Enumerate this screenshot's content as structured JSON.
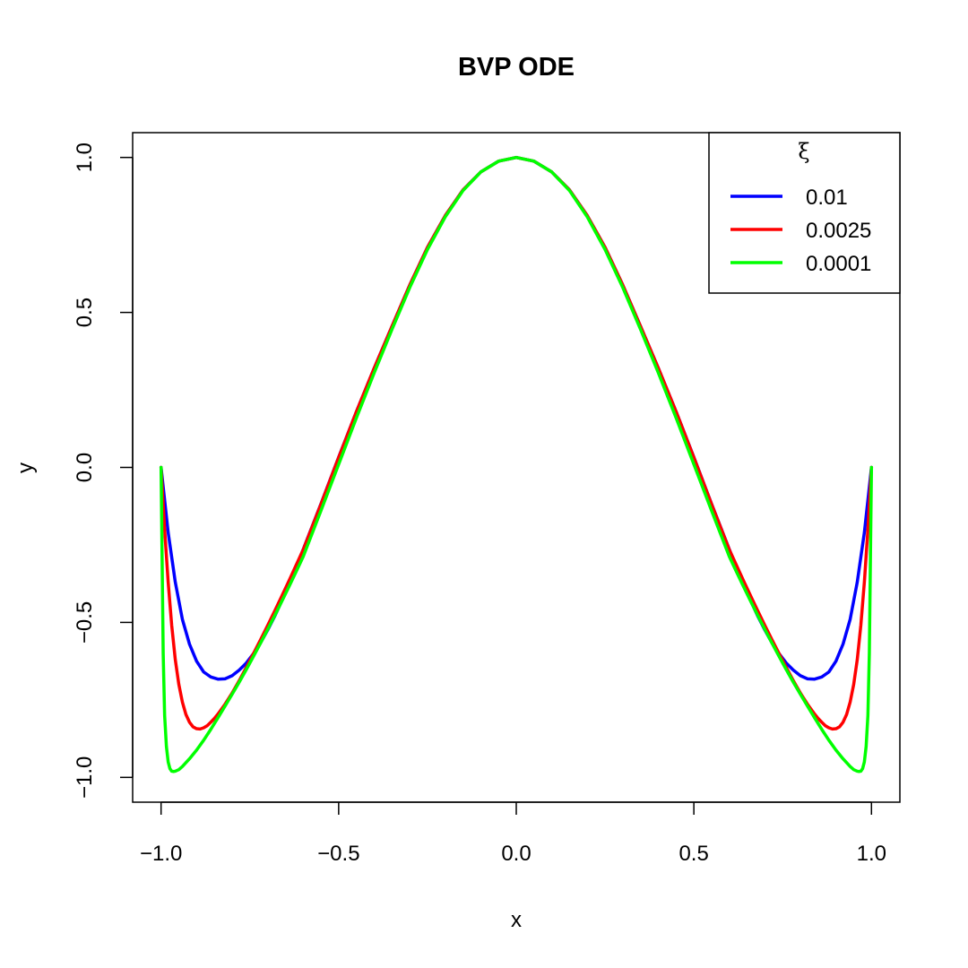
{
  "chart_data": {
    "type": "line",
    "title": "BVP ODE",
    "xlabel": "x",
    "ylabel": "y",
    "xlim": [
      -1.08,
      1.08
    ],
    "ylim": [
      -1.08,
      1.08
    ],
    "xticks": [
      -1.0,
      -0.5,
      0.0,
      0.5,
      1.0
    ],
    "xtick_labels": [
      "−1.0",
      "−0.5",
      "0.0",
      "0.5",
      "1.0"
    ],
    "yticks": [
      -1.0,
      -0.5,
      0.0,
      0.5,
      1.0
    ],
    "ytick_labels": [
      "−1.0",
      "−0.5",
      "0.0",
      "0.5",
      "1.0"
    ],
    "grid": false,
    "legend": {
      "title": "ξ",
      "placement": "top-right"
    },
    "series": [
      {
        "name": "0.01",
        "color": "#0000ff",
        "x": [
          -1.0,
          -0.98,
          -0.96,
          -0.94,
          -0.92,
          -0.9,
          -0.88,
          -0.86,
          -0.84,
          -0.82,
          -0.8,
          -0.78,
          -0.76,
          -0.74,
          -0.72,
          -0.7,
          -0.68,
          -0.66,
          -0.64,
          -0.62,
          -0.6,
          -0.55,
          -0.5,
          -0.45,
          -0.4,
          -0.35,
          -0.3,
          -0.25,
          -0.2,
          -0.15,
          -0.1,
          -0.05,
          0.0,
          0.05,
          0.1,
          0.15,
          0.2,
          0.25,
          0.3,
          0.35,
          0.4,
          0.45,
          0.5,
          0.55,
          0.6,
          0.62,
          0.64,
          0.66,
          0.68,
          0.7,
          0.72,
          0.74,
          0.76,
          0.78,
          0.8,
          0.82,
          0.84,
          0.86,
          0.88,
          0.9,
          0.92,
          0.94,
          0.96,
          0.98,
          1.0
        ],
        "y": [
          0.0,
          -0.21,
          -0.37,
          -0.49,
          -0.57,
          -0.625,
          -0.66,
          -0.676,
          -0.683,
          -0.682,
          -0.672,
          -0.654,
          -0.631,
          -0.601,
          -0.566,
          -0.525,
          -0.48,
          -0.43,
          -0.378,
          -0.322,
          -0.265,
          -0.118,
          0.033,
          0.18,
          0.32,
          0.455,
          0.588,
          0.71,
          0.812,
          0.895,
          0.953,
          0.988,
          1.0,
          0.988,
          0.953,
          0.895,
          0.812,
          0.71,
          0.588,
          0.455,
          0.32,
          0.18,
          0.033,
          -0.118,
          -0.265,
          -0.322,
          -0.378,
          -0.43,
          -0.48,
          -0.525,
          -0.566,
          -0.601,
          -0.631,
          -0.654,
          -0.672,
          -0.682,
          -0.683,
          -0.676,
          -0.66,
          -0.625,
          -0.57,
          -0.49,
          -0.37,
          -0.21,
          0.0
        ]
      },
      {
        "name": "0.0025",
        "color": "#ff0000",
        "x": [
          -1.0,
          -0.99,
          -0.98,
          -0.97,
          -0.96,
          -0.95,
          -0.94,
          -0.93,
          -0.92,
          -0.91,
          -0.9,
          -0.89,
          -0.88,
          -0.87,
          -0.86,
          -0.85,
          -0.84,
          -0.82,
          -0.8,
          -0.78,
          -0.76,
          -0.74,
          -0.72,
          -0.7,
          -0.68,
          -0.66,
          -0.64,
          -0.62,
          -0.6,
          -0.55,
          -0.5,
          -0.45,
          -0.4,
          -0.35,
          -0.3,
          -0.25,
          -0.2,
          -0.15,
          -0.1,
          -0.05,
          0.0,
          0.05,
          0.1,
          0.15,
          0.2,
          0.25,
          0.3,
          0.35,
          0.4,
          0.45,
          0.5,
          0.55,
          0.6,
          0.62,
          0.64,
          0.66,
          0.68,
          0.7,
          0.72,
          0.74,
          0.76,
          0.78,
          0.8,
          0.82,
          0.84,
          0.85,
          0.86,
          0.87,
          0.88,
          0.89,
          0.9,
          0.91,
          0.92,
          0.93,
          0.94,
          0.95,
          0.96,
          0.97,
          0.98,
          0.99,
          1.0
        ],
        "y": [
          0.0,
          -0.2,
          -0.37,
          -0.51,
          -0.62,
          -0.7,
          -0.757,
          -0.797,
          -0.822,
          -0.837,
          -0.843,
          -0.844,
          -0.84,
          -0.833,
          -0.822,
          -0.81,
          -0.796,
          -0.764,
          -0.728,
          -0.688,
          -0.645,
          -0.601,
          -0.556,
          -0.51,
          -0.463,
          -0.415,
          -0.366,
          -0.316,
          -0.266,
          -0.119,
          0.032,
          0.18,
          0.32,
          0.455,
          0.588,
          0.71,
          0.812,
          0.895,
          0.953,
          0.988,
          1.0,
          0.988,
          0.953,
          0.895,
          0.812,
          0.71,
          0.588,
          0.455,
          0.32,
          0.18,
          0.032,
          -0.119,
          -0.266,
          -0.316,
          -0.366,
          -0.415,
          -0.463,
          -0.51,
          -0.556,
          -0.601,
          -0.645,
          -0.688,
          -0.728,
          -0.764,
          -0.796,
          -0.81,
          -0.822,
          -0.833,
          -0.84,
          -0.844,
          -0.843,
          -0.837,
          -0.822,
          -0.797,
          -0.757,
          -0.7,
          -0.62,
          -0.51,
          -0.37,
          -0.2,
          0.0
        ]
      },
      {
        "name": "0.0001",
        "color": "#00ff00",
        "x": [
          -1.0,
          -0.997,
          -0.994,
          -0.99,
          -0.985,
          -0.98,
          -0.975,
          -0.97,
          -0.965,
          -0.96,
          -0.95,
          -0.94,
          -0.92,
          -0.9,
          -0.88,
          -0.86,
          -0.84,
          -0.82,
          -0.8,
          -0.78,
          -0.76,
          -0.74,
          -0.72,
          -0.7,
          -0.68,
          -0.66,
          -0.64,
          -0.62,
          -0.6,
          -0.55,
          -0.5,
          -0.45,
          -0.4,
          -0.35,
          -0.3,
          -0.25,
          -0.2,
          -0.15,
          -0.1,
          -0.05,
          0.0,
          0.05,
          0.1,
          0.15,
          0.2,
          0.25,
          0.3,
          0.35,
          0.4,
          0.45,
          0.5,
          0.55,
          0.6,
          0.62,
          0.64,
          0.66,
          0.68,
          0.7,
          0.72,
          0.74,
          0.76,
          0.78,
          0.8,
          0.82,
          0.84,
          0.86,
          0.88,
          0.9,
          0.92,
          0.94,
          0.95,
          0.96,
          0.965,
          0.97,
          0.975,
          0.98,
          0.985,
          0.99,
          0.994,
          0.997,
          1.0
        ],
        "y": [
          0.0,
          -0.3,
          -0.6,
          -0.8,
          -0.9,
          -0.95,
          -0.972,
          -0.98,
          -0.981,
          -0.98,
          -0.975,
          -0.965,
          -0.94,
          -0.912,
          -0.88,
          -0.845,
          -0.808,
          -0.77,
          -0.732,
          -0.693,
          -0.652,
          -0.61,
          -0.567,
          -0.523,
          -0.478,
          -0.432,
          -0.385,
          -0.337,
          -0.288,
          -0.14,
          0.01,
          0.16,
          0.305,
          0.445,
          0.58,
          0.703,
          0.808,
          0.893,
          0.953,
          0.988,
          1.0,
          0.988,
          0.953,
          0.893,
          0.808,
          0.703,
          0.58,
          0.445,
          0.305,
          0.16,
          0.01,
          -0.14,
          -0.288,
          -0.337,
          -0.385,
          -0.432,
          -0.478,
          -0.523,
          -0.567,
          -0.61,
          -0.652,
          -0.693,
          -0.732,
          -0.77,
          -0.808,
          -0.845,
          -0.88,
          -0.912,
          -0.94,
          -0.965,
          -0.975,
          -0.98,
          -0.981,
          -0.98,
          -0.972,
          -0.95,
          -0.9,
          -0.8,
          -0.6,
          -0.3,
          0.0
        ]
      }
    ]
  }
}
